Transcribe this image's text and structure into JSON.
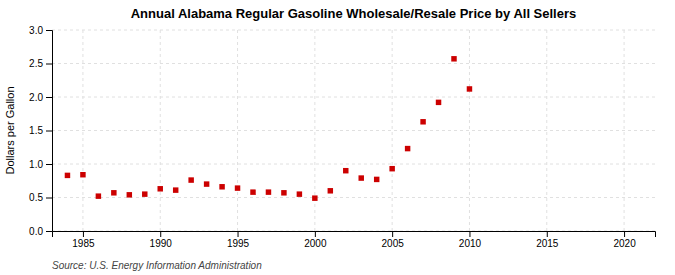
{
  "chart_data": {
    "type": "scatter",
    "title": "Annual Alabama Regular Gasoline Wholesale/Resale Price by All Sellers",
    "ylabel": "Dollars per Gallon",
    "annotation": "Source: U.S. Energy Information Administration",
    "x": [
      1984,
      1985,
      1986,
      1987,
      1988,
      1989,
      1990,
      1991,
      1992,
      1993,
      1994,
      1995,
      1996,
      1997,
      1998,
      1999,
      2000,
      2001,
      2002,
      2003,
      2004,
      2005,
      2006,
      2007,
      2008,
      2009,
      2010
    ],
    "values": [
      0.83,
      0.84,
      0.52,
      0.57,
      0.54,
      0.55,
      0.63,
      0.61,
      0.76,
      0.7,
      0.66,
      0.64,
      0.58,
      0.58,
      0.57,
      0.55,
      0.49,
      0.6,
      0.9,
      0.79,
      0.77,
      0.93,
      1.23,
      1.63,
      1.92,
      2.57,
      2.12
    ],
    "color": "#cc0000",
    "marker": "square",
    "xlim": [
      1983,
      2022
    ],
    "ylim": [
      0.0,
      3.0
    ],
    "xticks": [
      1985,
      1990,
      1995,
      2000,
      2005,
      2010,
      2015,
      2020
    ],
    "yticks": [
      {
        "value": 0.0,
        "label": "0.0"
      },
      0.5,
      {
        "value": 1.0,
        "label": "1.0"
      },
      1.5,
      {
        "value": 2.0,
        "label": "2.0"
      },
      2.5,
      {
        "value": 3.0,
        "label": "3.0"
      }
    ],
    "grid": true
  }
}
